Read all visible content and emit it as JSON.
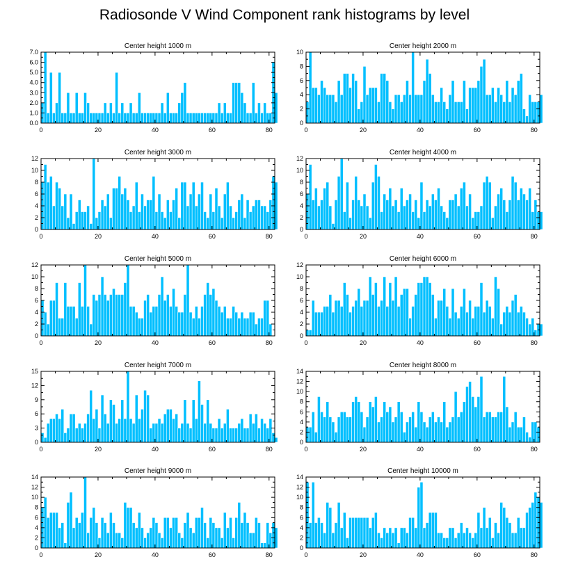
{
  "figure_title": "Radiosonde V Wind Component rank histograms by level",
  "colors": {
    "bar": "#00bfff",
    "bar_edge": "#ffffff",
    "axis": "#000000"
  },
  "chart_data": [
    {
      "type": "bar",
      "title": "Center height 1000 m",
      "xlim": [
        0,
        82
      ],
      "ylim": [
        0,
        7
      ],
      "xticks": [
        0,
        20,
        40,
        60,
        80
      ],
      "yticks": [
        0,
        1,
        2,
        3,
        4,
        5,
        6,
        7
      ],
      "ytick_labels": [
        "0.0",
        "1.0",
        "2.0",
        "3.0",
        "4.0",
        "5.0",
        "6.0",
        "7.0"
      ],
      "values": [
        2,
        7,
        1,
        5,
        1,
        2,
        5,
        1,
        1,
        3,
        1,
        1,
        3,
        1,
        1,
        3,
        2,
        1,
        1,
        1,
        1,
        1,
        2,
        1,
        2,
        1,
        5,
        1,
        2,
        1,
        1,
        2,
        1,
        1,
        3,
        1,
        1,
        1,
        1,
        1,
        1,
        1,
        2,
        1,
        3,
        1,
        1,
        1,
        2,
        3,
        4,
        1,
        1,
        1,
        1,
        1,
        1,
        1,
        1,
        1,
        1,
        1,
        2,
        1,
        2,
        1,
        1,
        4,
        4,
        4,
        3,
        2,
        1,
        1,
        4,
        1,
        2,
        1,
        2,
        1,
        1,
        6,
        3
      ]
    },
    {
      "type": "bar",
      "title": "Center height 2000 m",
      "xlim": [
        0,
        82
      ],
      "ylim": [
        0,
        10
      ],
      "xticks": [
        0,
        20,
        40,
        60,
        80
      ],
      "yticks": [
        0,
        2,
        4,
        6,
        8,
        10
      ],
      "ytick_labels": [
        "0",
        "2",
        "4",
        "6",
        "8",
        "10"
      ],
      "values": [
        3,
        10,
        5,
        5,
        4,
        6,
        5,
        4,
        4,
        4,
        3,
        6,
        4,
        7,
        7,
        5,
        7,
        6,
        2,
        3,
        8,
        4,
        5,
        5,
        5,
        3,
        7,
        7,
        6,
        3,
        2,
        4,
        4,
        3,
        4,
        6,
        4,
        10,
        4,
        4,
        4,
        6,
        9,
        7,
        4,
        3,
        3,
        5,
        3,
        2,
        4,
        6,
        3,
        3,
        3,
        6,
        2,
        5,
        5,
        5,
        6,
        8,
        9,
        4,
        4,
        5,
        3,
        5,
        4,
        3,
        6,
        3,
        5,
        4,
        6,
        7,
        2,
        1,
        4,
        3,
        3,
        3,
        4
      ]
    },
    {
      "type": "bar",
      "title": "Center height 3000 m",
      "xlim": [
        0,
        82
      ],
      "ylim": [
        0,
        12
      ],
      "xticks": [
        0,
        20,
        40,
        60,
        80
      ],
      "yticks": [
        0,
        2,
        4,
        6,
        8,
        10,
        12
      ],
      "ytick_labels": [
        "0",
        "2",
        "4",
        "6",
        "8",
        "10",
        "12"
      ],
      "values": [
        8,
        11,
        8,
        9,
        4,
        8,
        7,
        4,
        6,
        2,
        6,
        1,
        3,
        5,
        3,
        3,
        4,
        1,
        12,
        2,
        3,
        5,
        4,
        6,
        2,
        7,
        7,
        9,
        6,
        7,
        5,
        3,
        4,
        8,
        3,
        6,
        4,
        5,
        5,
        9,
        3,
        6,
        3,
        2,
        5,
        3,
        5,
        7,
        2,
        8,
        8,
        4,
        6,
        8,
        4,
        6,
        8,
        3,
        2,
        6,
        3,
        7,
        4,
        2,
        6,
        8,
        4,
        2,
        3,
        5,
        6,
        2,
        5,
        3,
        4,
        5,
        5,
        4,
        4,
        3,
        5,
        9,
        8
      ]
    },
    {
      "type": "bar",
      "title": "Center height 4000 m",
      "xlim": [
        0,
        82
      ],
      "ylim": [
        0,
        12
      ],
      "xticks": [
        0,
        20,
        40,
        60,
        80
      ],
      "yticks": [
        0,
        2,
        4,
        6,
        8,
        10,
        12
      ],
      "ytick_labels": [
        "0",
        "2",
        "4",
        "6",
        "8",
        "10",
        "12"
      ],
      "values": [
        6,
        11,
        5,
        7,
        4,
        5,
        7,
        8,
        4,
        1,
        5,
        9,
        12,
        3,
        8,
        2,
        5,
        9,
        5,
        4,
        6,
        4,
        2,
        8,
        11,
        9,
        3,
        6,
        5,
        7,
        4,
        5,
        3,
        7,
        4,
        5,
        6,
        3,
        5,
        2,
        8,
        3,
        5,
        4,
        6,
        5,
        7,
        4,
        3,
        2,
        5,
        5,
        6,
        4,
        7,
        8,
        4,
        6,
        2,
        3,
        3,
        4,
        8,
        9,
        8,
        2,
        4,
        6,
        7,
        5,
        3,
        5,
        9,
        8,
        5,
        7,
        6,
        5,
        7,
        3,
        5,
        3,
        3
      ]
    },
    {
      "type": "bar",
      "title": "Center height 5000 m",
      "xlim": [
        0,
        82
      ],
      "ylim": [
        0,
        12
      ],
      "xticks": [
        0,
        20,
        40,
        60,
        80
      ],
      "yticks": [
        0,
        2,
        4,
        6,
        8,
        10,
        12
      ],
      "ytick_labels": [
        "0",
        "2",
        "4",
        "6",
        "8",
        "10",
        "12"
      ],
      "values": [
        6,
        4,
        2,
        6,
        6,
        9,
        3,
        3,
        9,
        5,
        5,
        5,
        3,
        9,
        5,
        12,
        5,
        2,
        7,
        6,
        7,
        10,
        7,
        6,
        7,
        8,
        7,
        7,
        7,
        9,
        12,
        5,
        5,
        4,
        3,
        3,
        6,
        7,
        4,
        5,
        5,
        7,
        10,
        6,
        7,
        5,
        8,
        5,
        4,
        4,
        7,
        12,
        4,
        3,
        5,
        3,
        5,
        7,
        9,
        7,
        8,
        6,
        5,
        4,
        5,
        3,
        3,
        5,
        4,
        3,
        4,
        3,
        3,
        4,
        4,
        2,
        3,
        3,
        6,
        6,
        2
      ]
    },
    {
      "type": "bar",
      "title": "Center height 6000 m",
      "xlim": [
        0,
        82
      ],
      "ylim": [
        0,
        12
      ],
      "xticks": [
        0,
        20,
        40,
        60,
        80
      ],
      "yticks": [
        0,
        2,
        4,
        6,
        8,
        10,
        12
      ],
      "ytick_labels": [
        "0",
        "2",
        "4",
        "6",
        "8",
        "10",
        "12"
      ],
      "values": [
        1,
        1,
        6,
        4,
        4,
        4,
        5,
        5,
        7,
        4,
        6,
        6,
        5,
        9,
        7,
        4,
        5,
        6,
        8,
        5,
        6,
        6,
        10,
        7,
        9,
        5,
        6,
        10,
        5,
        9,
        6,
        10,
        5,
        7,
        8,
        8,
        3,
        5,
        7,
        9,
        9,
        10,
        10,
        9,
        7,
        3,
        6,
        6,
        8,
        5,
        3,
        8,
        4,
        3,
        5,
        8,
        4,
        6,
        3,
        5,
        5,
        9,
        4,
        6,
        5,
        3,
        10,
        8,
        2,
        4,
        5,
        4,
        6,
        7,
        4,
        5,
        4,
        3,
        2,
        3,
        1,
        2,
        2
      ]
    },
    {
      "type": "bar",
      "title": "Center height 7000 m",
      "xlim": [
        0,
        82
      ],
      "ylim": [
        0,
        15
      ],
      "xticks": [
        0,
        20,
        40,
        60,
        80
      ],
      "yticks": [
        0,
        3,
        6,
        9,
        12,
        15
      ],
      "ytick_labels": [
        "0",
        "3",
        "6",
        "9",
        "12",
        "15"
      ],
      "values": [
        2,
        1,
        4,
        5,
        5,
        6,
        5,
        7,
        2,
        3,
        6,
        6,
        3,
        4,
        3,
        4,
        6,
        11,
        5,
        7,
        3,
        10,
        6,
        4,
        9,
        8,
        4,
        5,
        9,
        5,
        15,
        5,
        4,
        10,
        5,
        7,
        11,
        10,
        3,
        4,
        4,
        5,
        4,
        6,
        7,
        7,
        5,
        6,
        3,
        4,
        9,
        4,
        3,
        9,
        5,
        13,
        8,
        4,
        9,
        4,
        3,
        3,
        5,
        3,
        4,
        7,
        3,
        3,
        3,
        4,
        5,
        3,
        3,
        6,
        4,
        6,
        3,
        5,
        4,
        3,
        5,
        2,
        1
      ]
    },
    {
      "type": "bar",
      "title": "Center height 8000 m",
      "xlim": [
        0,
        82
      ],
      "ylim": [
        0,
        14
      ],
      "xticks": [
        0,
        20,
        40,
        60,
        80
      ],
      "yticks": [
        0,
        2,
        4,
        6,
        8,
        10,
        12,
        14
      ],
      "ytick_labels": [
        "0",
        "2",
        "4",
        "6",
        "8",
        "10",
        "12",
        "14"
      ],
      "values": [
        3,
        3,
        6,
        2,
        9,
        6,
        5,
        8,
        5,
        4,
        2,
        5,
        6,
        6,
        5,
        5,
        8,
        9,
        8,
        6,
        3,
        5,
        8,
        7,
        9,
        4,
        5,
        8,
        6,
        7,
        4,
        5,
        8,
        6,
        2,
        4,
        5,
        6,
        3,
        8,
        6,
        4,
        3,
        5,
        6,
        4,
        5,
        4,
        8,
        3,
        4,
        5,
        10,
        5,
        6,
        8,
        11,
        12,
        9,
        7,
        9,
        13,
        5,
        6,
        6,
        5,
        5,
        6,
        6,
        13,
        7,
        3,
        4,
        6,
        3,
        3,
        5,
        2,
        1,
        4,
        4,
        3
      ]
    },
    {
      "type": "bar",
      "title": "Center height 9000 m",
      "xlim": [
        0,
        82
      ],
      "ylim": [
        0,
        14
      ],
      "xticks": [
        0,
        20,
        40,
        60,
        80
      ],
      "yticks": [
        0,
        2,
        4,
        6,
        8,
        10,
        12,
        14
      ],
      "ytick_labels": [
        "0",
        "2",
        "4",
        "6",
        "8",
        "10",
        "12",
        "14"
      ],
      "values": [
        8,
        10,
        6,
        7,
        7,
        7,
        4,
        5,
        1,
        9,
        11,
        4,
        6,
        5,
        7,
        14,
        3,
        6,
        8,
        5,
        2,
        6,
        5,
        3,
        7,
        5,
        3,
        3,
        2,
        9,
        8,
        8,
        5,
        4,
        7,
        4,
        2,
        3,
        4,
        6,
        5,
        3,
        2,
        6,
        6,
        4,
        6,
        6,
        3,
        2,
        5,
        7,
        4,
        3,
        6,
        6,
        8,
        5,
        2,
        6,
        5,
        4,
        4,
        2,
        7,
        4,
        6,
        2,
        6,
        9,
        5,
        7,
        5,
        3,
        3,
        6,
        5,
        1,
        1,
        5,
        3,
        5,
        4
      ]
    },
    {
      "type": "bar",
      "title": "Center height 10000 m",
      "xlim": [
        0,
        82
      ],
      "ylim": [
        0,
        14
      ],
      "xticks": [
        0,
        20,
        40,
        60,
        80
      ],
      "yticks": [
        0,
        2,
        4,
        6,
        8,
        10,
        12,
        14
      ],
      "ytick_labels": [
        "0",
        "2",
        "4",
        "6",
        "8",
        "10",
        "12",
        "14"
      ],
      "values": [
        13,
        5,
        13,
        5,
        6,
        5,
        3,
        9,
        8,
        3,
        5,
        9,
        4,
        7,
        2,
        6,
        6,
        6,
        6,
        6,
        6,
        6,
        4,
        6,
        7,
        3,
        2,
        4,
        3,
        4,
        3,
        4,
        1,
        4,
        4,
        3,
        6,
        6,
        4,
        12,
        13,
        4,
        5,
        7,
        7,
        7,
        3,
        3,
        2,
        2,
        4,
        4,
        2,
        3,
        5,
        3,
        4,
        3,
        2,
        3,
        7,
        4,
        8,
        4,
        6,
        2,
        5,
        3,
        9,
        8,
        6,
        5,
        3,
        3,
        6,
        4,
        4,
        7,
        8,
        9,
        11,
        10,
        9
      ]
    }
  ]
}
